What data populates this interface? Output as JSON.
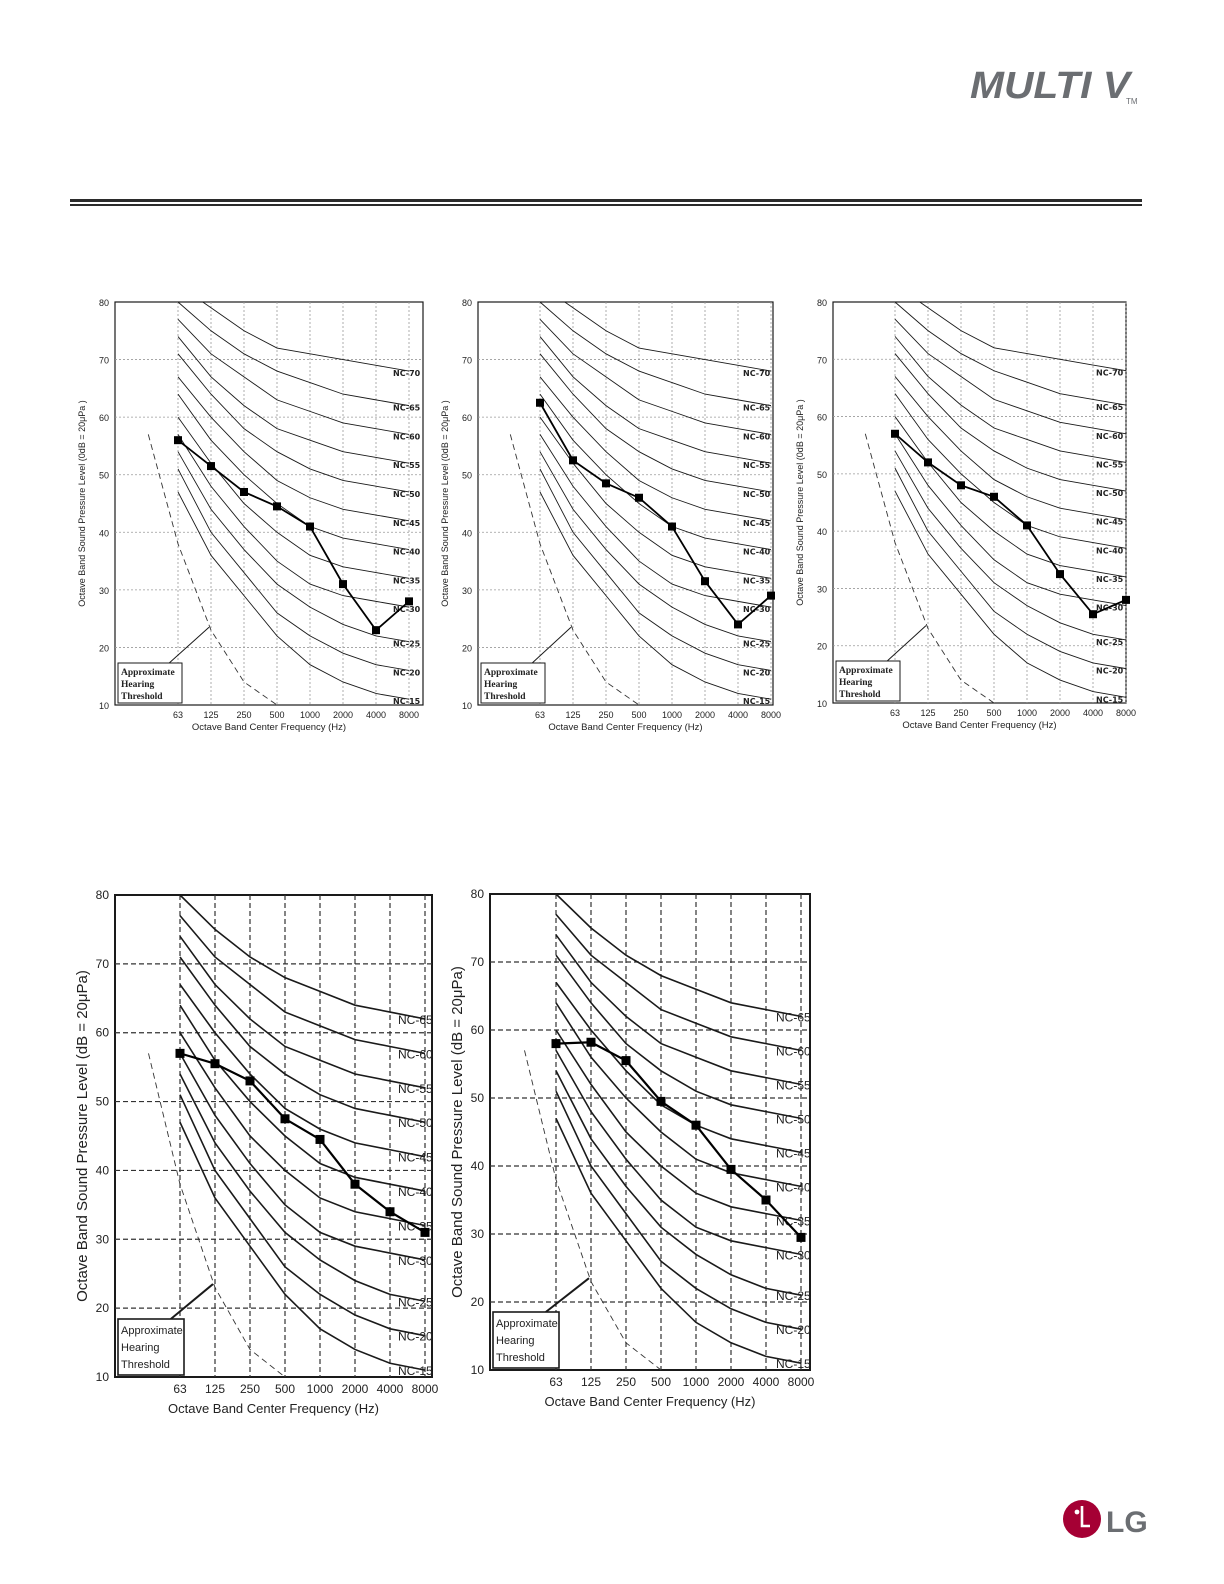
{
  "brand": {
    "logo_text": "MULTI V",
    "trademark": "TM",
    "manufacturer_logo_text": "LG"
  },
  "chart_data": [
    {
      "type": "line",
      "xlabel": "Octave Band Center Frequency (Hz)",
      "ylabel": "Octave Band Sound Pressure Level (0dB = 20μPa )",
      "categories": [
        "63",
        "125",
        "250",
        "500",
        "1000",
        "2000",
        "4000",
        "8000"
      ],
      "ylim": [
        10,
        80
      ],
      "yticks": [
        "10",
        "20",
        "30",
        "40",
        "50",
        "60",
        "70",
        "80"
      ],
      "grid": true,
      "nc_labels": [
        "NC-70",
        "NC-65",
        "NC-60",
        "NC-55",
        "NC-50",
        "NC-45",
        "NC-40",
        "NC-35",
        "NC-30",
        "NC-25",
        "NC-20",
        "NC-15"
      ],
      "threshold_label": [
        "Approximate",
        "Hearing",
        "Threshold"
      ],
      "series": [
        {
          "values": [
            56,
            51.5,
            47,
            44.5,
            41,
            31,
            23,
            28
          ]
        }
      ]
    },
    {
      "type": "line",
      "xlabel": "Octave Band Center Frequency (Hz)",
      "ylabel": "Octave Band Sound Pressure Level (0dB = 20μPa )",
      "categories": [
        "63",
        "125",
        "250",
        "500",
        "1000",
        "2000",
        "4000",
        "8000"
      ],
      "ylim": [
        10,
        80
      ],
      "yticks": [
        "10",
        "20",
        "30",
        "40",
        "50",
        "60",
        "70",
        "80"
      ],
      "grid": true,
      "nc_labels": [
        "NC-70",
        "NC-65",
        "NC-60",
        "NC-55",
        "NC-50",
        "NC-45",
        "NC-40",
        "NC-35",
        "NC-30",
        "NC-25",
        "NC-20",
        "NC-15"
      ],
      "threshold_label": [
        "Approximate",
        "Hearing",
        "Threshold"
      ],
      "series": [
        {
          "values": [
            62.5,
            52.5,
            48.5,
            46,
            41,
            31.5,
            24,
            29
          ]
        }
      ]
    },
    {
      "type": "line",
      "xlabel": "Octave Band Center Frequency (Hz)",
      "ylabel": "Octave Band Sound Pressure Level (0dB = 20μPa )",
      "categories": [
        "63",
        "125",
        "250",
        "500",
        "1000",
        "2000",
        "4000",
        "8000"
      ],
      "ylim": [
        10,
        80
      ],
      "yticks": [
        "10",
        "20",
        "30",
        "40",
        "50",
        "60",
        "70",
        "80"
      ],
      "grid": true,
      "nc_labels": [
        "NC-70",
        "NC-65",
        "NC-60",
        "NC-55",
        "NC-50",
        "NC-45",
        "NC-40",
        "NC-35",
        "NC-30",
        "NC-25",
        "NC-20",
        "NC-15"
      ],
      "threshold_label": [
        "Approximate",
        "Hearing",
        "Threshold"
      ],
      "series": [
        {
          "values": [
            57,
            52,
            48,
            46,
            41,
            32.5,
            25.5,
            28
          ]
        }
      ]
    },
    {
      "type": "line",
      "xlabel": "Octave Band Center Frequency (Hz)",
      "ylabel": "Octave Band Sound Pressure Level (dB = 20μPa)",
      "categories": [
        "63",
        "125",
        "250",
        "500",
        "1000",
        "2000",
        "4000",
        "8000"
      ],
      "ylim": [
        10,
        80
      ],
      "yticks": [
        "10",
        "20",
        "30",
        "40",
        "50",
        "60",
        "70",
        "80"
      ],
      "grid": true,
      "nc_labels": [
        "NC-65",
        "NC-60",
        "NC-55",
        "NC-50",
        "NC-45",
        "NC-40",
        "NC-35",
        "NC-30",
        "NC-25",
        "NC-20",
        "NC-15"
      ],
      "threshold_label": [
        "Approximate",
        "Hearing",
        "Threshold"
      ],
      "series": [
        {
          "values": [
            57,
            55.5,
            53,
            47.5,
            44.5,
            38,
            34,
            31
          ]
        }
      ]
    },
    {
      "type": "line",
      "xlabel": "Octave Band Center Frequency (Hz)",
      "ylabel": "Octave Band Sound Pressure Level (dB = 20μPa)",
      "categories": [
        "63",
        "125",
        "250",
        "500",
        "1000",
        "2000",
        "4000",
        "8000"
      ],
      "ylim": [
        10,
        80
      ],
      "yticks": [
        "10",
        "20",
        "30",
        "40",
        "50",
        "60",
        "70",
        "80"
      ],
      "grid": true,
      "nc_labels": [
        "NC-65",
        "NC-60",
        "NC-55",
        "NC-50",
        "NC-45",
        "NC-40",
        "NC-35",
        "NC-30",
        "NC-25",
        "NC-20",
        "NC-15"
      ],
      "threshold_label": [
        "Approximate",
        "Hearing",
        "Threshold"
      ],
      "series": [
        {
          "values": [
            58,
            58.2,
            55.5,
            49.5,
            46,
            39.5,
            35,
            29.5
          ]
        }
      ]
    }
  ]
}
